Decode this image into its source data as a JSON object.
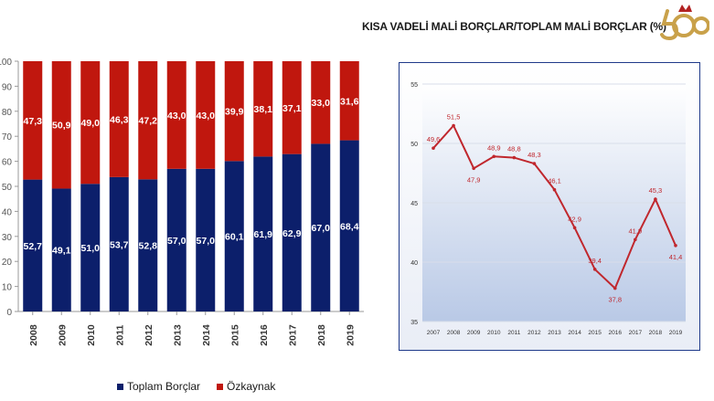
{
  "title": "KISA VADELİ MALİ BORÇLAR/TOPLAM MALİ BORÇLAR (%)",
  "logo": {
    "text": "500",
    "icon": "anniversary-500-logo-icon"
  },
  "chart_data": [
    {
      "type": "bar",
      "stacked": true,
      "title": "",
      "categories": [
        "2008",
        "2009",
        "2010",
        "2011",
        "2012",
        "2013",
        "2014",
        "2015",
        "2016",
        "2017",
        "2018",
        "2019"
      ],
      "series": [
        {
          "name": "Toplam Borçlar",
          "color": "#0c1f6b",
          "values": [
            52.7,
            49.1,
            51.0,
            53.7,
            52.8,
            57.0,
            57.0,
            60.1,
            61.9,
            62.9,
            67.0,
            68.4
          ],
          "labels": [
            "52,7",
            "49,1",
            "51,0",
            "53,7",
            "52,8",
            "57,0",
            "57,0",
            "60,1",
            "61,9",
            "62,9",
            "67,0",
            "68,4"
          ]
        },
        {
          "name": "Özkaynak",
          "color": "#c0170e",
          "values": [
            47.3,
            50.9,
            49.0,
            46.3,
            47.2,
            43.0,
            43.0,
            39.9,
            38.1,
            37.1,
            33.0,
            31.6
          ],
          "labels": [
            "47,3",
            "50,9",
            "49,0",
            "46,3",
            "47,2",
            "43,0",
            "43,0",
            "39,9",
            "38,1",
            "37,1",
            "33,0",
            "31,6"
          ]
        }
      ],
      "ylim": [
        0,
        100
      ],
      "yticks": [
        "0",
        "10",
        "20",
        "30",
        "40",
        "50",
        "60",
        "70",
        "80",
        "90",
        "100"
      ],
      "legend": "bottom",
      "grid": false
    },
    {
      "type": "line",
      "title": "",
      "x": [
        "2007",
        "2008",
        "2009",
        "2010",
        "2011",
        "2012",
        "2013",
        "2014",
        "2015",
        "2016",
        "2017",
        "2018",
        "2019"
      ],
      "series": [
        {
          "color": "#c0272d",
          "values": [
            49.6,
            51.5,
            47.9,
            48.9,
            48.8,
            48.3,
            46.1,
            42.9,
            39.4,
            37.8,
            41.9,
            45.3,
            41.4
          ],
          "labels": [
            "49,6",
            "51,5",
            "47,9",
            "48,9",
            "48,8",
            "48,3",
            "46,1",
            "42,9",
            "39,4",
            "37,8",
            "41,9",
            "45,3",
            "41,4"
          ]
        }
      ],
      "ylim": [
        35,
        55
      ],
      "yticks": [
        "35",
        "40",
        "45",
        "50",
        "55"
      ],
      "grid": true
    }
  ]
}
